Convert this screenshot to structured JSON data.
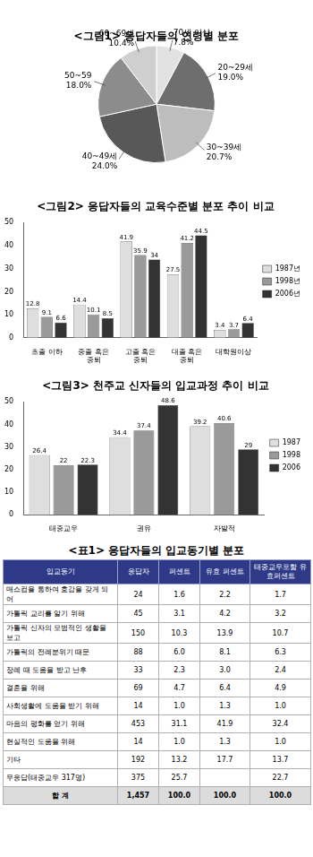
{
  "chart_data": [
    {
      "type": "pie",
      "title": "<그림1> 응답자들의 연령별 분포",
      "categories": [
        "70세 이상",
        "20~29세",
        "30~39세",
        "40~49세",
        "50~59",
        "60~69세"
      ],
      "values": [
        7.8,
        19.0,
        20.7,
        24.0,
        18.0,
        10.4
      ],
      "value_labels": [
        "7.8%",
        "19.0%",
        "20.7%",
        "24.0%",
        "18.0%",
        "10.4%"
      ],
      "colors": [
        "#e2e2e2",
        "#6e6e6e",
        "#bdbdbd",
        "#585858",
        "#8c8c8c",
        "#cfcfcf"
      ],
      "data_labels": true
    },
    {
      "type": "bar",
      "title": "<그림2> 응답자들의 교육수준별 분포 추이 비교",
      "categories": [
        "초졸 이하",
        "중졸 혹은 중퇴",
        "고졸 혹은 중퇴",
        "대졸 혹은 중퇴",
        "대학원이상"
      ],
      "series": [
        {
          "name": "1987년",
          "color": "#dedede",
          "values": [
            12.8,
            14.4,
            41.9,
            27.5,
            3.4
          ]
        },
        {
          "name": "1998년",
          "color": "#9a9a9a",
          "values": [
            9.1,
            10.1,
            35.9,
            41.2,
            3.7
          ]
        },
        {
          "name": "2006년",
          "color": "#333333",
          "values": [
            6.6,
            8.5,
            34,
            44.5,
            6.4
          ]
        }
      ],
      "ylim": [
        0,
        50
      ],
      "yticks": [
        0,
        10,
        20,
        30,
        40,
        50
      ],
      "grid": false,
      "legend": "right",
      "data_labels": true
    },
    {
      "type": "bar",
      "title": "<그림3> 천주교 신자들의 입교과정 추이 비교",
      "categories": [
        "태중교우",
        "권유",
        "자발적"
      ],
      "series": [
        {
          "name": "1987",
          "color": "#dedede",
          "values": [
            26.4,
            34.4,
            39.2
          ]
        },
        {
          "name": "1998",
          "color": "#9a9a9a",
          "values": [
            22,
            37.4,
            40.6
          ]
        },
        {
          "name": "2006",
          "color": "#333333",
          "values": [
            22.3,
            48.6,
            29
          ]
        }
      ],
      "ylim": [
        0,
        50
      ],
      "yticks": [
        0,
        10,
        20,
        30,
        40,
        50
      ],
      "grid": false,
      "legend": "right",
      "data_labels": true
    }
  ],
  "table": {
    "title": "<표1> 응답자들의 입교동기별 분포",
    "header": [
      "입교동기",
      "응답자",
      "퍼센트",
      "유효 퍼센트",
      "태중교우포함 유효퍼센트"
    ],
    "rows": [
      [
        "매스컴을 통하여 호감을 갖게 되어",
        "24",
        "1.6",
        "2.2",
        "1.7"
      ],
      [
        "가톨릭 교리를 알기 위해",
        "45",
        "3.1",
        "4.2",
        "3.2"
      ],
      [
        "가톨릭 신자의 모범적인 생활을 보고",
        "150",
        "10.3",
        "13.9",
        "10.7"
      ],
      [
        "가톨릭의 전례분위기 때문",
        "88",
        "6.0",
        "8.1",
        "6.3"
      ],
      [
        "장례 때 도움을 받고 난후",
        "33",
        "2.3",
        "3.0",
        "2.4"
      ],
      [
        "결혼을 위해",
        "69",
        "4.7",
        "6.4",
        "4.9"
      ],
      [
        "사회생활에 도움을 받기 위해",
        "14",
        "1.0",
        "1.3",
        "1.0"
      ],
      [
        "마음의 평화를 얻기 위해",
        "453",
        "31.1",
        "41.9",
        "32.4"
      ],
      [
        "현실적인 도움을 위해",
        "14",
        "1.0",
        "1.3",
        "1.0"
      ],
      [
        "기타",
        "192",
        "13.2",
        "17.7",
        "13.7"
      ],
      [
        "무응답(태중교우 317명)",
        "375",
        "25.7",
        null,
        "22.7"
      ]
    ],
    "total": [
      "합 계",
      "1,457",
      "100.0",
      "100.0",
      "100.0"
    ]
  }
}
